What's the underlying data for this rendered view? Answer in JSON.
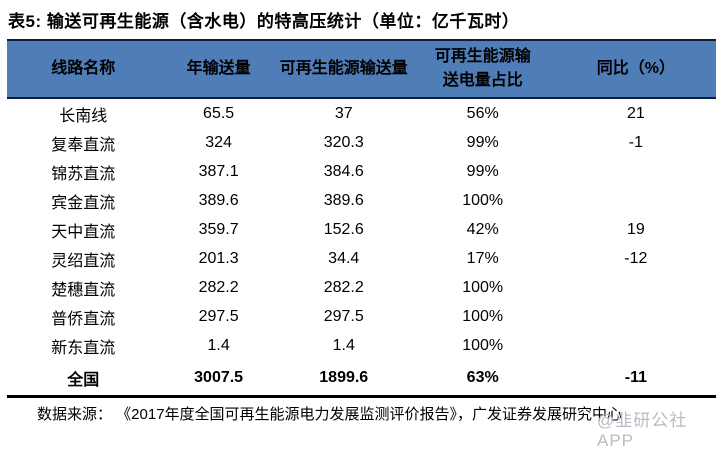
{
  "title": "表5:  输送可再生能源（含水电）的特高压统计（单位：亿千瓦时）",
  "colors": {
    "header_bg": "#4f7db7",
    "header_border": "#0d1f3c",
    "bottom_rule": "#000000",
    "watermark": "#b7bbc2"
  },
  "table": {
    "headers": {
      "col1": "线路名称",
      "col2": "年输送量",
      "col3": "可再生能源输送量",
      "col4_line1": "可再生能源输",
      "col4_line2": "送电量占比",
      "col5": "同比（%）"
    },
    "rows": [
      {
        "name": "长南线",
        "annual": "65.5",
        "renewable": "37",
        "share": "56%",
        "yoy": "21"
      },
      {
        "name": "复奉直流",
        "annual": "324",
        "renewable": "320.3",
        "share": "99%",
        "yoy": "-1"
      },
      {
        "name": "锦苏直流",
        "annual": "387.1",
        "renewable": "384.6",
        "share": "99%",
        "yoy": ""
      },
      {
        "name": "宾金直流",
        "annual": "389.6",
        "renewable": "389.6",
        "share": "100%",
        "yoy": ""
      },
      {
        "name": "天中直流",
        "annual": "359.7",
        "renewable": "152.6",
        "share": "42%",
        "yoy": "19"
      },
      {
        "name": "灵绍直流",
        "annual": "201.3",
        "renewable": "34.4",
        "share": "17%",
        "yoy": "-12"
      },
      {
        "name": "楚穗直流",
        "annual": "282.2",
        "renewable": "282.2",
        "share": "100%",
        "yoy": ""
      },
      {
        "name": "普侨直流",
        "annual": "297.5",
        "renewable": "297.5",
        "share": "100%",
        "yoy": ""
      },
      {
        "name": "新东直流",
        "annual": "1.4",
        "renewable": "1.4",
        "share": "100%",
        "yoy": ""
      }
    ],
    "total_row": {
      "name": "全国",
      "annual": "3007.5",
      "renewable": "1899.6",
      "share": "63%",
      "yoy": "-11"
    }
  },
  "footer": {
    "source": "数据来源： 《2017年度全国可再生能源电力发展监测评价报告》，广发证券发展研究中心"
  },
  "watermark": "@韭研公社APP"
}
